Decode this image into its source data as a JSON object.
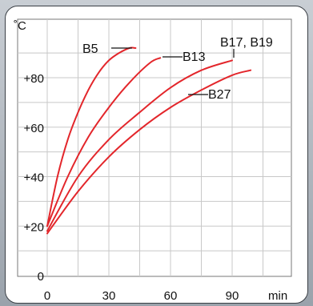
{
  "chart_data": {
    "type": "line",
    "title": "",
    "xlabel": "",
    "ylabel": "",
    "y_unit": "˚C",
    "x_unit": "min",
    "xlim": [
      0,
      100
    ],
    "ylim": [
      0,
      100
    ],
    "x_ticks": [
      0,
      30,
      60,
      90
    ],
    "y_ticks": [
      0,
      20,
      40,
      60,
      80
    ],
    "x_tick_labels": [
      "0",
      "30",
      "60",
      "90"
    ],
    "y_tick_labels": [
      "0",
      "+20",
      "+40",
      "+60",
      "+80"
    ],
    "grid": true,
    "line_color": "#e3262b",
    "series": [
      {
        "name": "B5",
        "x": [
          0,
          5,
          10,
          15,
          20,
          25,
          30,
          35,
          40,
          43
        ],
        "y": [
          20,
          40,
          55,
          66,
          75,
          82,
          87,
          90,
          92,
          92
        ]
      },
      {
        "name": "B13",
        "x": [
          0,
          10,
          20,
          30,
          40,
          50,
          55
        ],
        "y": [
          20,
          40,
          56,
          68,
          78,
          86,
          88
        ]
      },
      {
        "name": "B17, B19",
        "x": [
          0,
          15,
          30,
          45,
          60,
          75,
          90
        ],
        "y": [
          18,
          40,
          55,
          66,
          76,
          83,
          87
        ]
      },
      {
        "name": "B27",
        "x": [
          0,
          15,
          30,
          45,
          60,
          75,
          90,
          99
        ],
        "y": [
          17,
          34,
          48,
          59,
          68,
          75,
          81,
          83
        ]
      }
    ]
  }
}
